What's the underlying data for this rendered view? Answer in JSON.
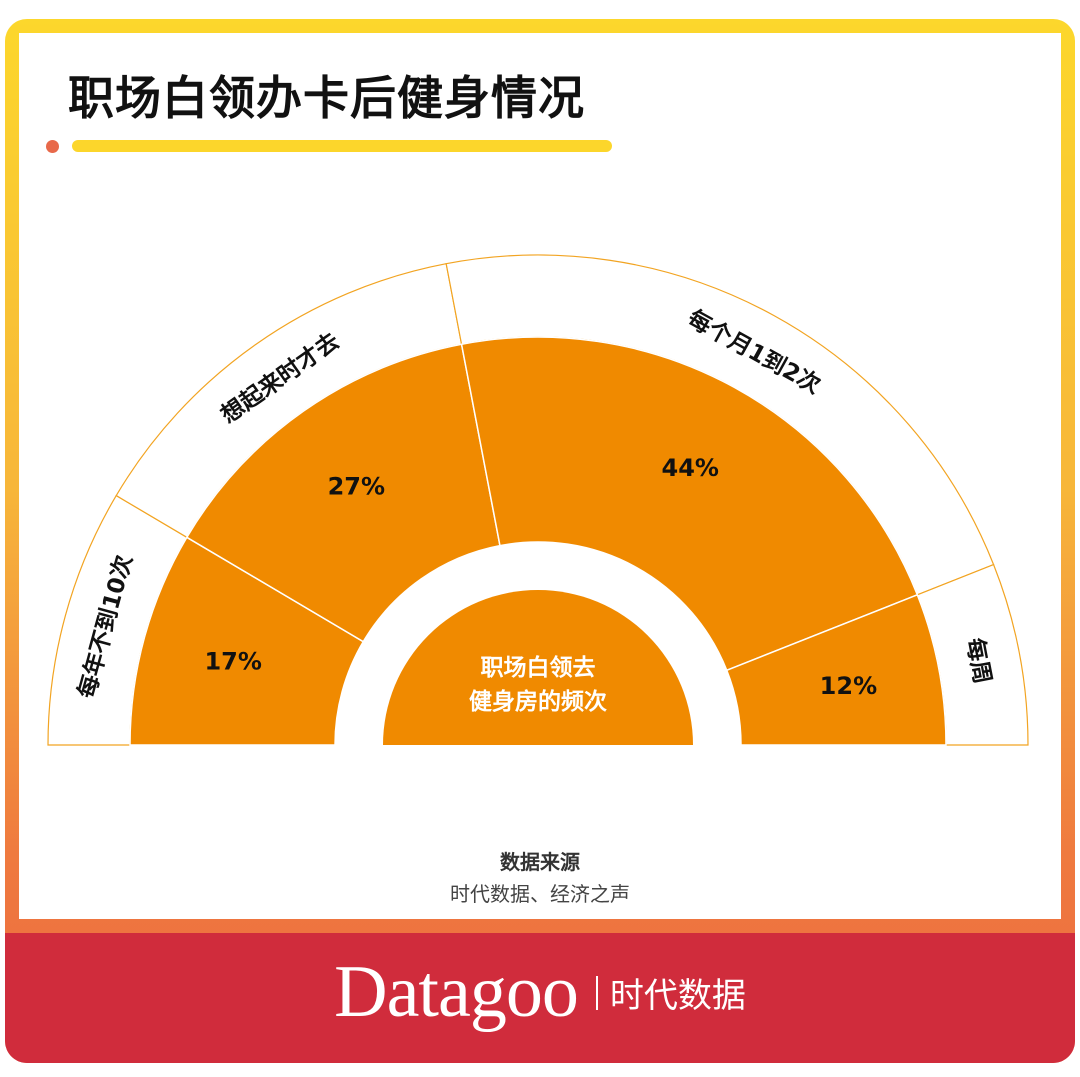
{
  "title": "职场白领办卡后健身情况",
  "colors": {
    "slice": "#f08a00",
    "ring_stroke": "#f2a422",
    "frame_top": "#fcd72c",
    "frame_bottom": "#ec6a40",
    "footer": "#d02c3c",
    "accent_dot": "#e8694a"
  },
  "chart_data": {
    "type": "pie",
    "variant": "half-donut",
    "center_label": [
      "职场白领去",
      "健身房的频次"
    ],
    "categories": [
      "每年不到10次",
      "想起来时才去",
      "每个月1到2次",
      "每周"
    ],
    "values": [
      17,
      27,
      44,
      12
    ],
    "value_labels": [
      "17%",
      "27%",
      "44%",
      "12%"
    ],
    "unit": "%"
  },
  "source": {
    "heading": "数据来源",
    "text": "时代数据、经济之声"
  },
  "logo": {
    "en": "Datagoo",
    "cn": "时代数据"
  }
}
